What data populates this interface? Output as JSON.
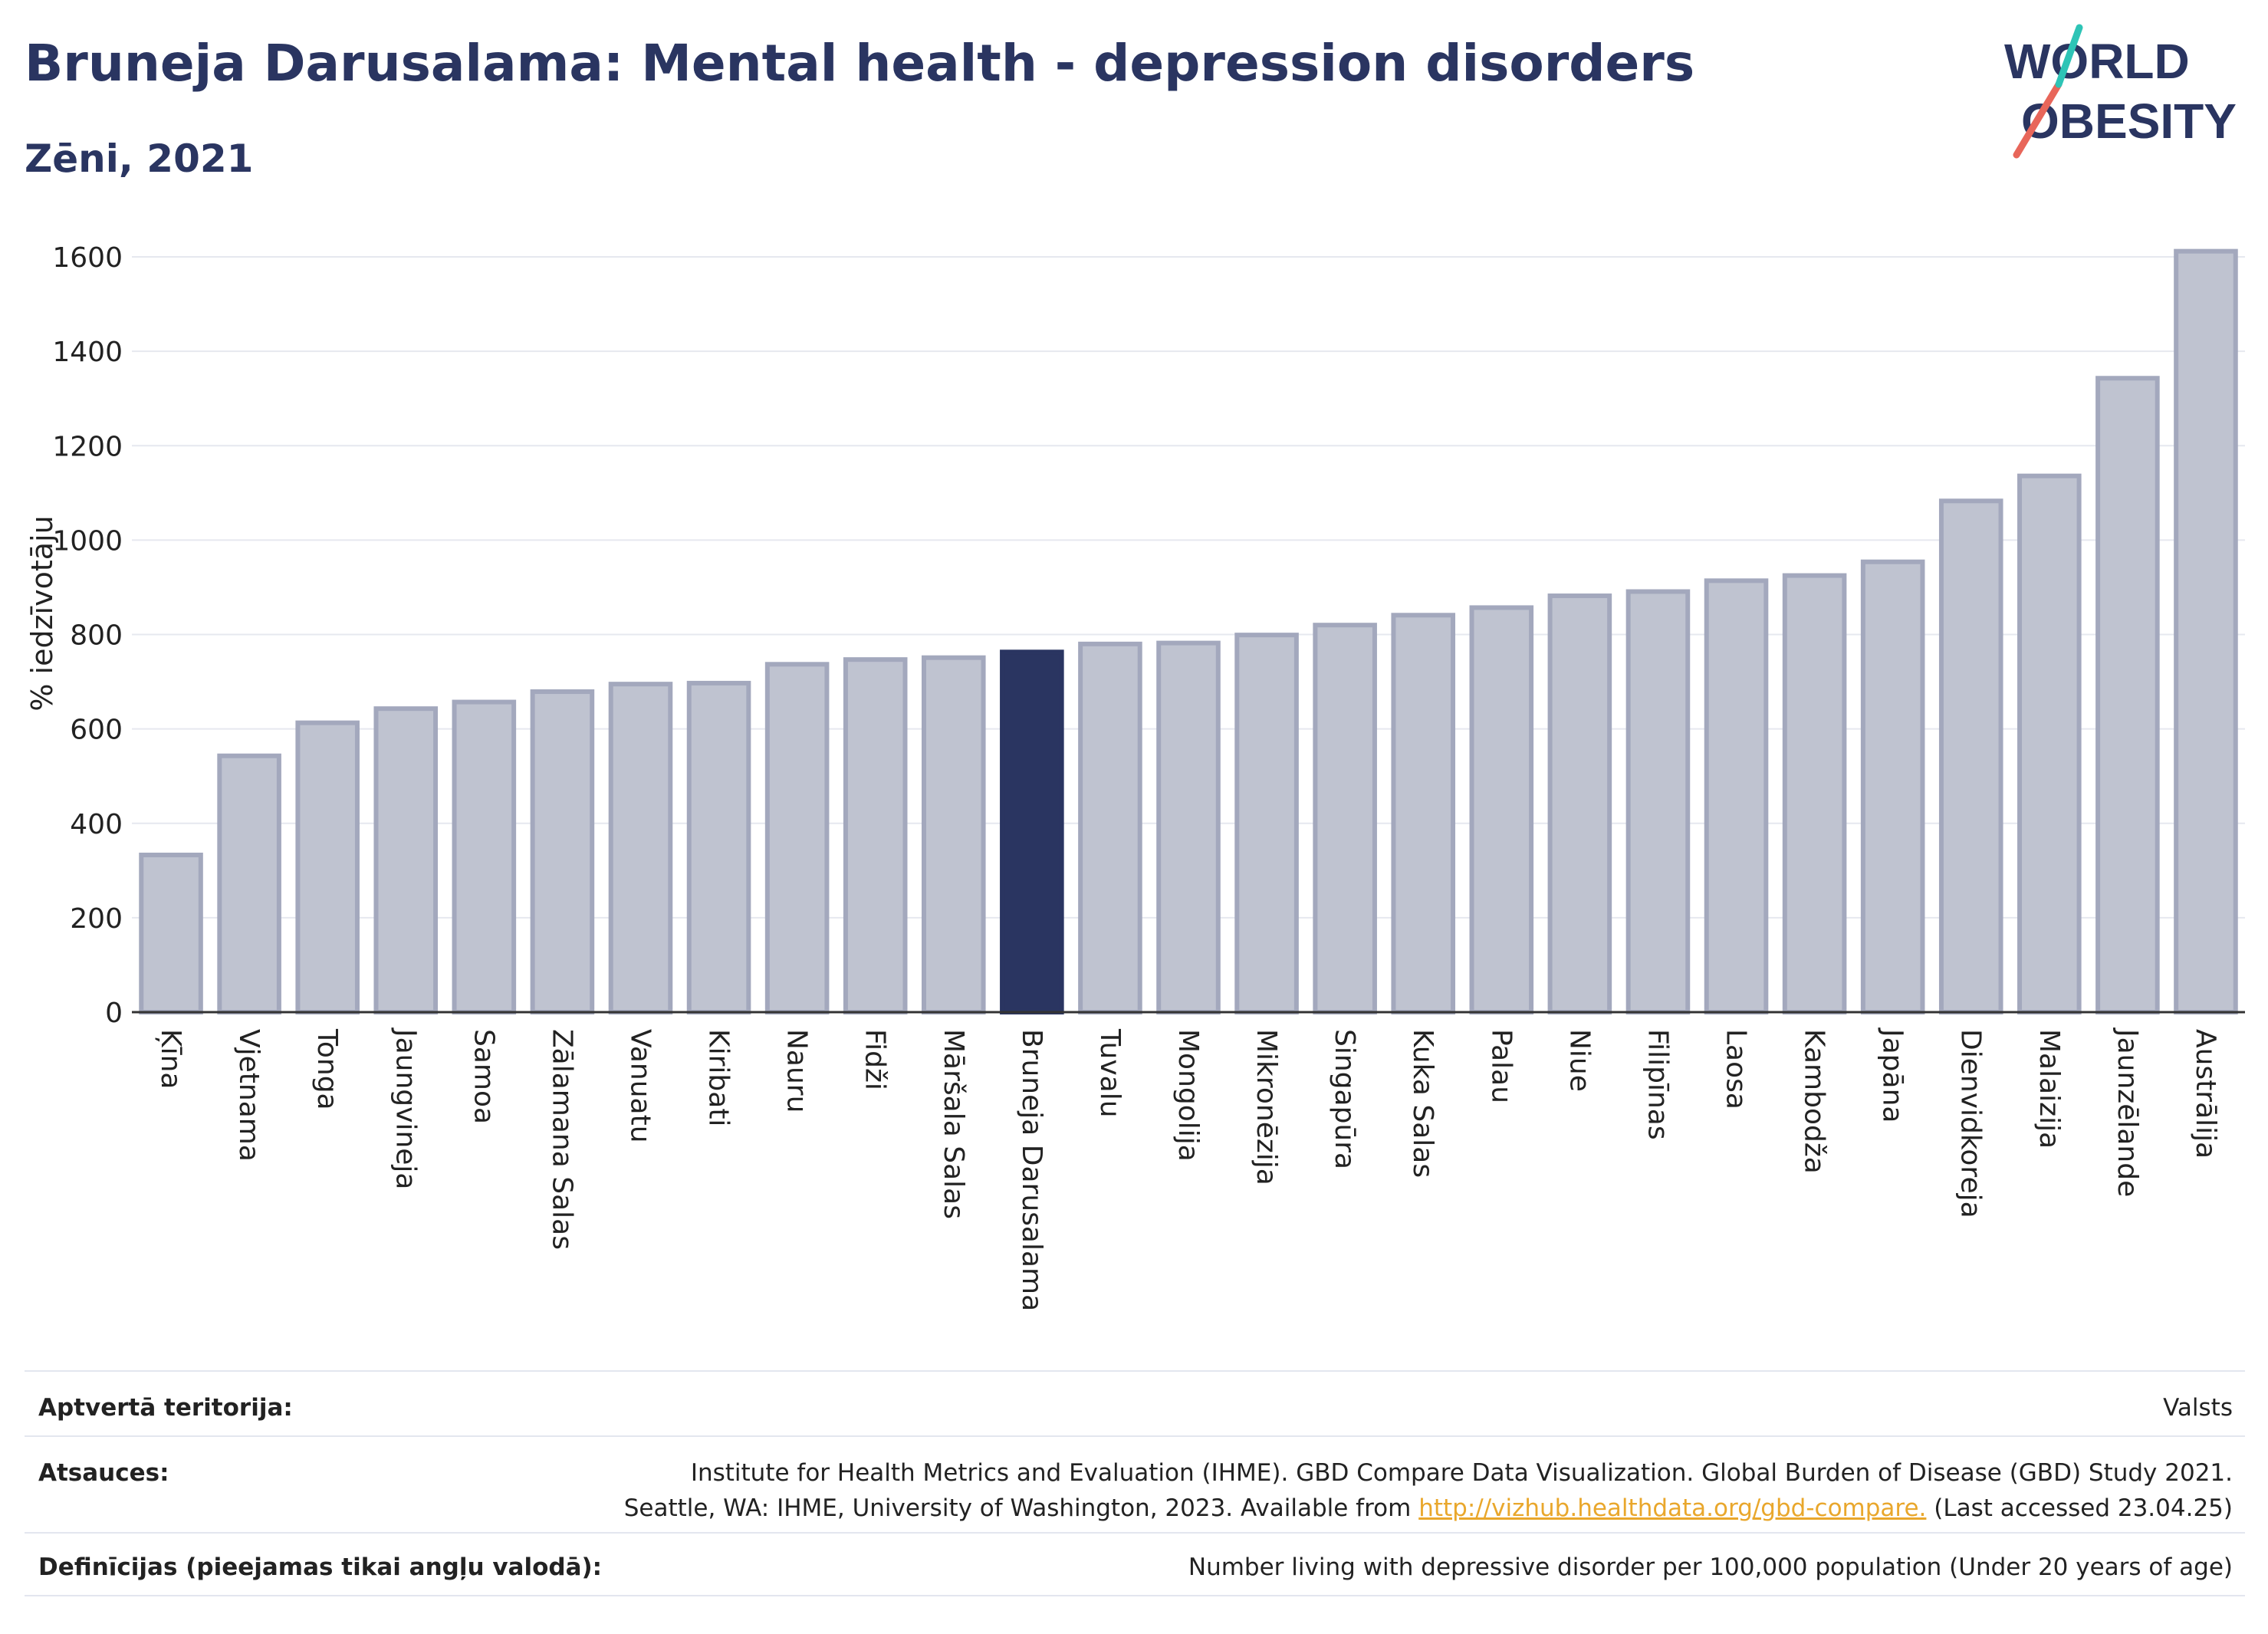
{
  "title": "Bruneja Darusalama: Mental health - depression disorders",
  "subtitle": "Zēni, 2021",
  "logo": {
    "line1": "WORLD",
    "line2": "OBESITY"
  },
  "colors": {
    "highlight": "#2a3561",
    "bar_fill": "#bfc3d0",
    "bar_stroke": "#a3a8bd",
    "title": "#2a3561",
    "link": "#e9a72c",
    "logo_teal": "#2ec4b6",
    "logo_red": "#e8665a"
  },
  "chart_data": {
    "type": "bar",
    "ylabel": "% iedzīvotāju",
    "xlabel": "",
    "ylim": [
      0,
      1650
    ],
    "yticks": [
      0,
      200,
      400,
      600,
      800,
      1000,
      1200,
      1400,
      1600
    ],
    "grid": true,
    "highlight": "Bruneja Darusalama",
    "categories": [
      "Ķīna",
      "Vjetnama",
      "Tonga",
      "Jaungvineja",
      "Samoa",
      "Zālamana Salas",
      "Vanuatu",
      "Kiribati",
      "Nauru",
      "Fidži",
      "Māršala Salas",
      "Bruneja Darusalama",
      "Tuvalu",
      "Mongolija",
      "Mikronēzija",
      "Singapūra",
      "Kuka Salas",
      "Palau",
      "Niue",
      "Filipīnas",
      "Laosa",
      "Kambodža",
      "Japāna",
      "Dienvidkoreja",
      "Malaizija",
      "Jaunzēlande",
      "Austrālija"
    ],
    "values": [
      333,
      543,
      613,
      643,
      657,
      679,
      695,
      697,
      737,
      747,
      751,
      763,
      780,
      782,
      799,
      820,
      841,
      857,
      882,
      891,
      914,
      925,
      954,
      1083,
      1136,
      1343,
      1612
    ]
  },
  "info": {
    "territory_label": "Aptvertā teritorija:",
    "territory_value": "Valsts",
    "sources_label": "Atsauces:",
    "sources_line1": "Institute for Health Metrics and Evaluation (IHME). GBD Compare Data Visualization. Global Burden of Disease (GBD) Study 2021.",
    "sources_line2_prefix": "Seattle, WA: IHME, University of Washington, 2023. Available from",
    "sources_link": "http://vizhub.healthdata.org/gbd-compare.",
    "sources_line2_suffix": "(Last accessed 23.04.25)",
    "definitions_label": "Definīcijas (pieejamas tikai angļu valodā):",
    "definitions_value": "Number living with depressive disorder per 100,000 population (Under 20 years of age)"
  }
}
